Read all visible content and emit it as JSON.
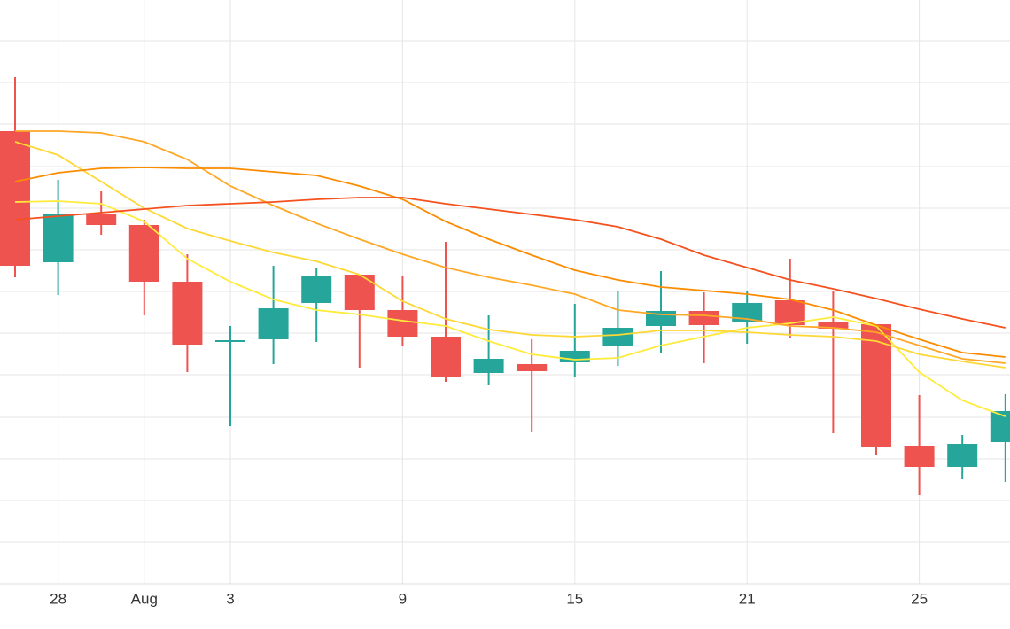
{
  "chart_data": {
    "type": "candlestick",
    "categories": [
      null,
      "28",
      null,
      "Aug",
      null,
      "3",
      null,
      null,
      null,
      "9",
      null,
      null,
      null,
      "15",
      null,
      null,
      null,
      "21",
      null,
      null,
      null,
      "25",
      null,
      null
    ],
    "open": [
      511,
      363,
      417,
      405,
      341,
      273,
      276,
      317,
      349,
      309,
      279,
      238,
      248,
      250,
      268,
      291,
      308,
      295,
      320,
      295,
      293,
      156,
      132,
      160
    ],
    "high": [
      572,
      456,
      443,
      411,
      372,
      291,
      359,
      356,
      349,
      347,
      386,
      303,
      276,
      316,
      331,
      353,
      329,
      331,
      367,
      330,
      293,
      213,
      168,
      214
    ],
    "low": [
      346,
      326,
      394,
      303,
      239,
      178,
      248,
      273,
      244,
      269,
      228,
      224,
      171,
      233,
      246,
      261,
      249,
      271,
      278,
      170,
      145,
      100,
      118,
      115
    ],
    "close": [
      359,
      417,
      405,
      341,
      270,
      275,
      311,
      348,
      309,
      279,
      234,
      254,
      240,
      263,
      289,
      308,
      292,
      317,
      292,
      288,
      155,
      132,
      158,
      195
    ],
    "increasing_color": "#26a69a",
    "decreasing_color": "#ef5350",
    "series": [
      {
        "color": "#ffeb3b",
        "values": [
          431,
          432,
          429,
          409,
          367,
          341,
          321,
          309,
          304,
          297,
          291,
          274,
          259,
          253,
          255,
          269,
          279,
          289,
          294,
          301,
          291,
          239,
          207,
          189
        ]
      },
      {
        "color": "#fdd835",
        "values": [
          499,
          484,
          454,
          424,
          401,
          387,
          374,
          364,
          349,
          319,
          299,
          287,
          281,
          279,
          281,
          286,
          286,
          284,
          281,
          279,
          274,
          259,
          251,
          244
        ]
      },
      {
        "color": "#ffa726",
        "values": [
          511,
          511,
          509,
          499,
          479,
          449,
          427,
          407,
          389,
          372,
          357,
          346,
          337,
          327,
          309,
          304,
          303,
          299,
          291,
          289,
          284,
          269,
          254,
          249
        ]
      },
      {
        "color": "#fb8c00",
        "values": [
          454,
          464,
          469,
          470,
          469,
          469,
          465,
          461,
          449,
          434,
          409,
          389,
          371,
          354,
          343,
          335,
          331,
          327,
          321,
          309,
          292,
          276,
          261,
          256
        ]
      },
      {
        "color": "#f4511e",
        "values": [
          411,
          415,
          419,
          423,
          427,
          429,
          431,
          434,
          436,
          436,
          429,
          423,
          417,
          411,
          403,
          389,
          371,
          357,
          343,
          333,
          322,
          310,
          299,
          289
        ]
      }
    ],
    "ylim": [
      0,
      659
    ],
    "yticks": [
      47,
      94,
      141,
      188,
      236,
      283,
      330,
      377,
      424,
      471,
      519,
      566,
      613
    ],
    "grid": true
  }
}
